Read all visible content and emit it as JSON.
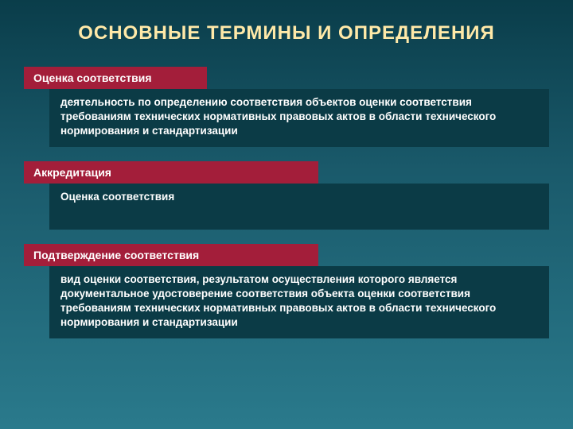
{
  "title": "ОСНОВНЫЕ ТЕРМИНЫ И ОПРЕДЕЛЕНИЯ",
  "colors": {
    "label_bg": "#a31e3a",
    "definition_bg": "#0b3b46",
    "title_color": "#ffe9a8",
    "text_color": "#ffffff",
    "bg_top": "#0a3d4a",
    "bg_bottom": "#2a7a8c"
  },
  "sections": [
    {
      "label": "Оценка соответствия",
      "definition": "деятельность по определению соответствия объектов оценки соответствия требованиям технических нормативных правовых актов в области технического нормирования и стандартизации"
    },
    {
      "label": "Аккредитация",
      "definition": "Оценка соответствия"
    },
    {
      "label": "Подтверждение соответствия",
      "definition": "вид оценки соответствия, результатом осуществления которого является документальное удостоверение соответствия объекта оценки соответствия требованиям технических нормативных правовых актов в области технического нормирования и стандартизации"
    }
  ]
}
